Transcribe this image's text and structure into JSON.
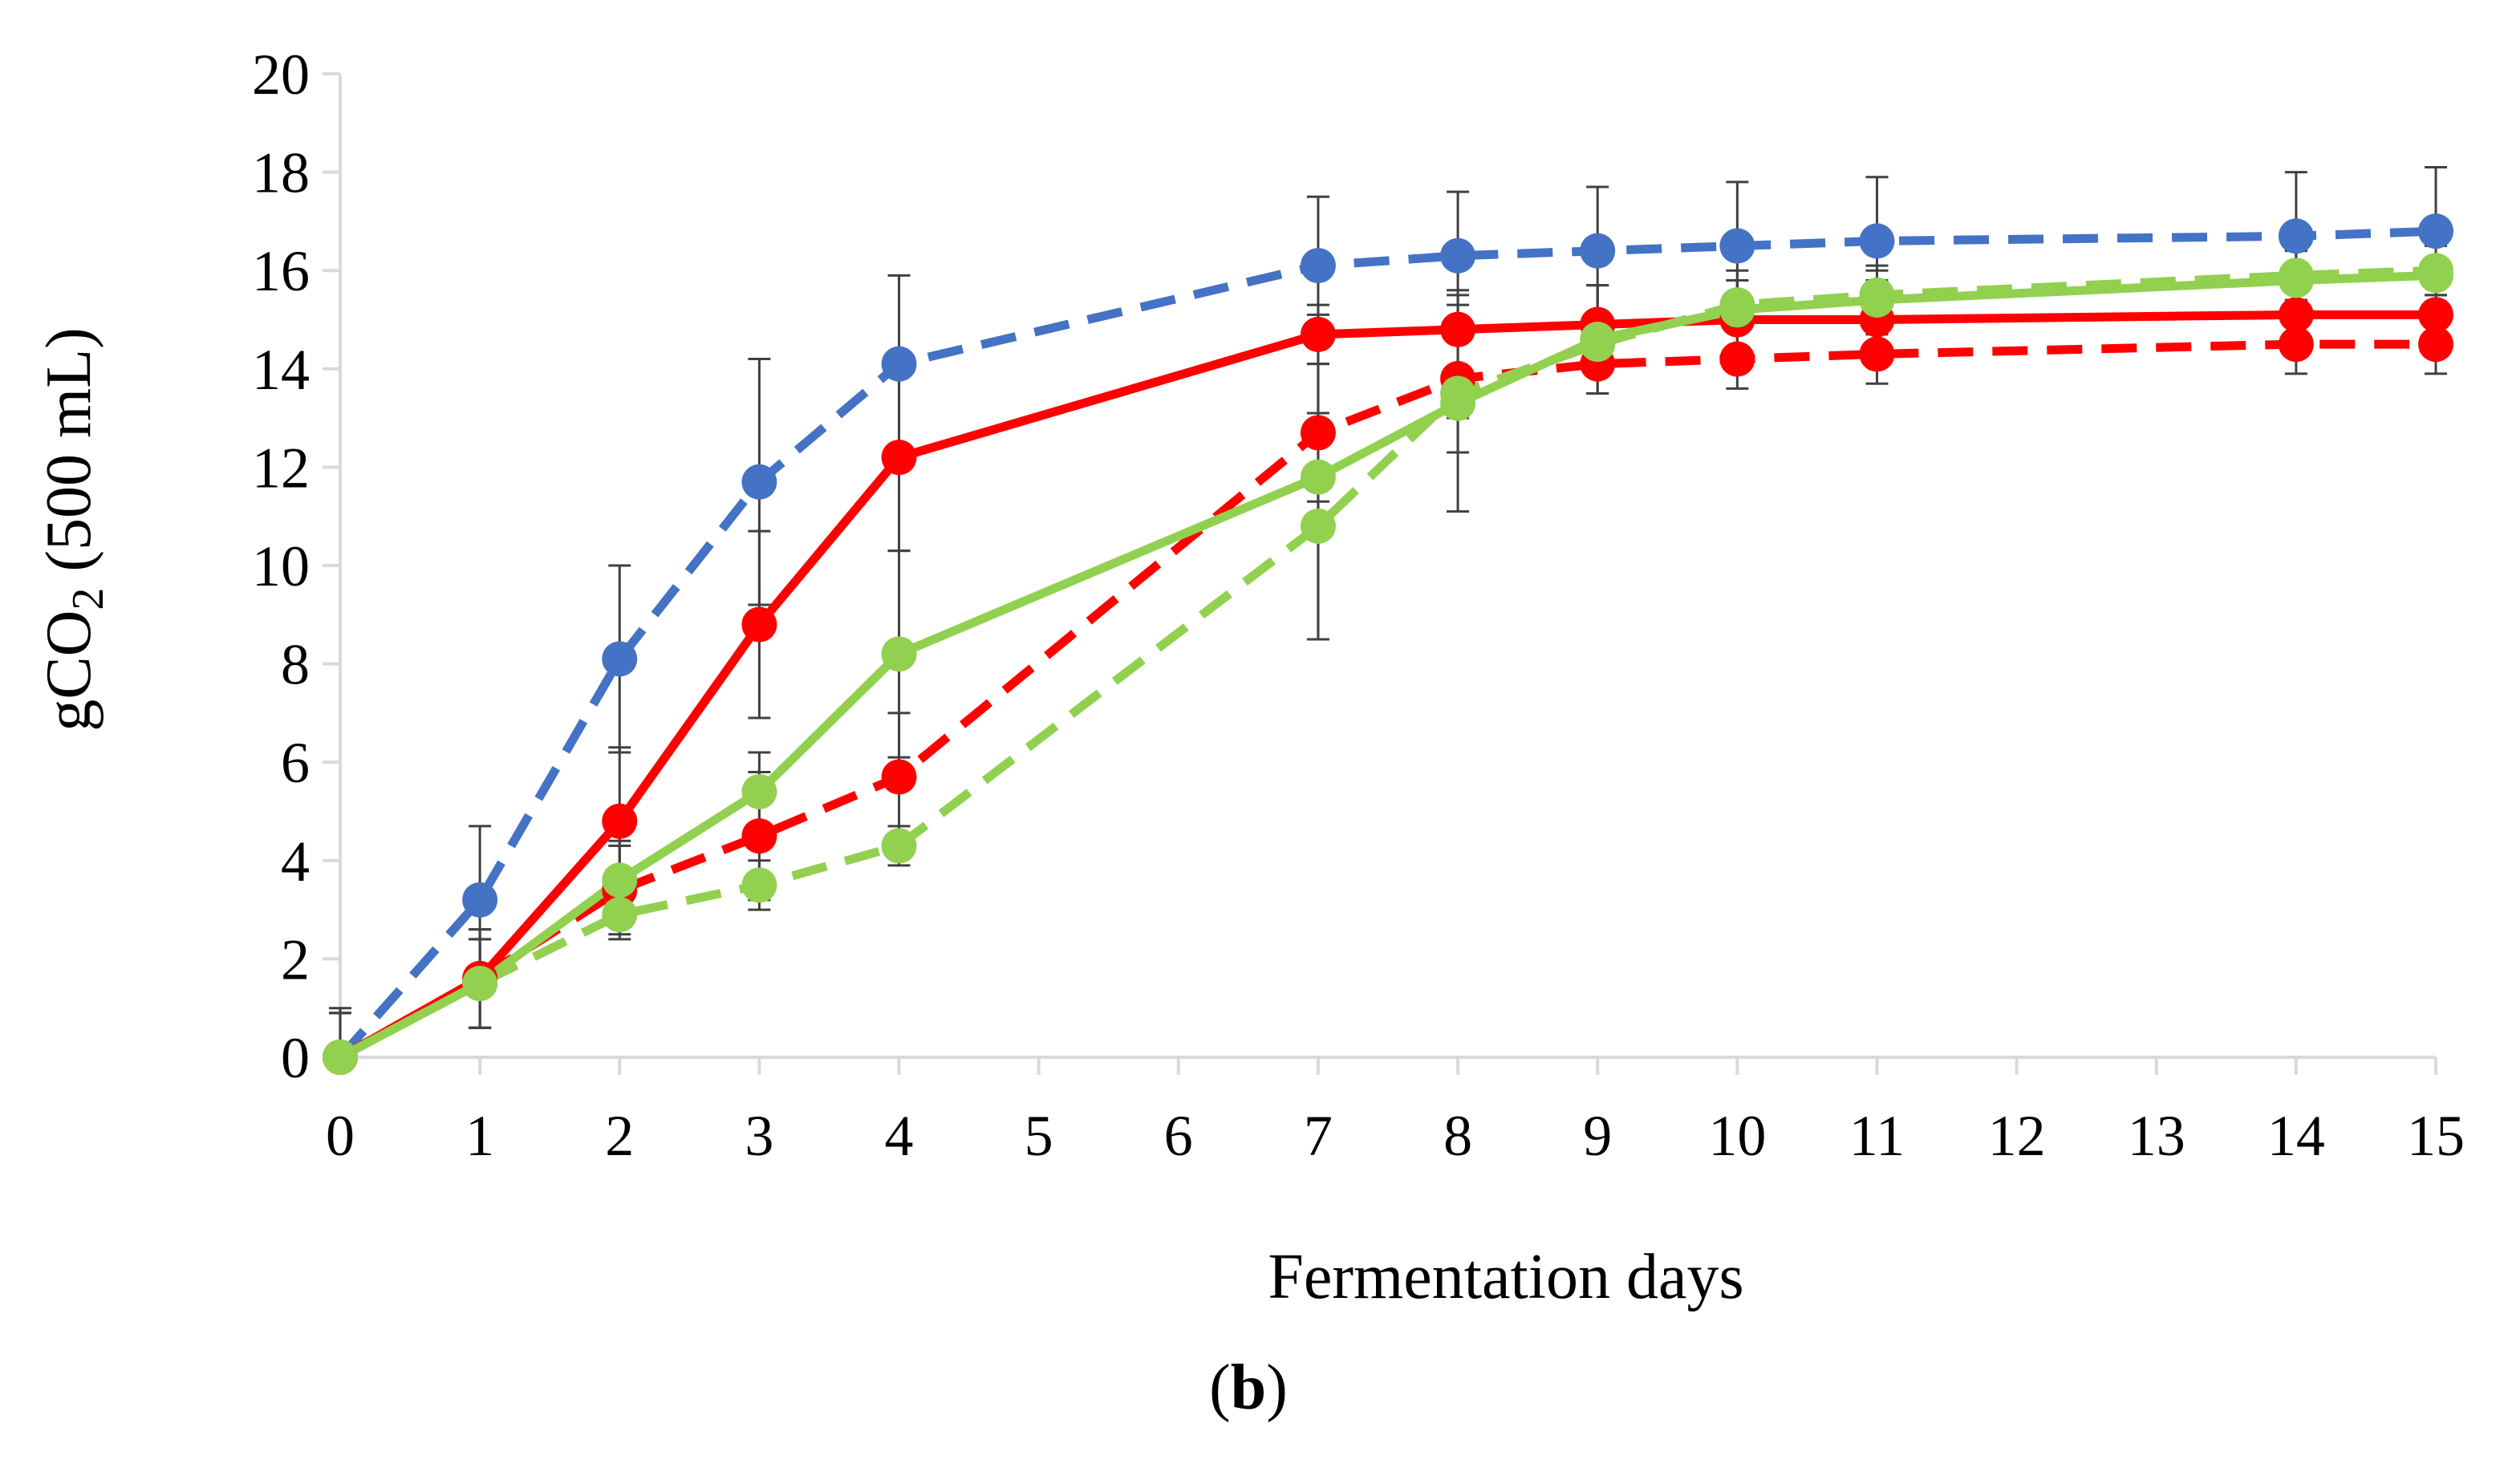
{
  "chart_data": {
    "type": "line",
    "xlabel": "Fermentation days",
    "ylabel_main": "gCO",
    "ylabel_sub": "2",
    "ylabel_rest": " (500 mL)",
    "panel_label": {
      "open": "(",
      "letter": "b",
      "close": ")"
    },
    "x": [
      0,
      1,
      2,
      3,
      4,
      7,
      8,
      9,
      10,
      11,
      14,
      15
    ],
    "xticks": [
      0,
      1,
      2,
      3,
      4,
      5,
      6,
      7,
      8,
      9,
      10,
      11,
      12,
      13,
      14,
      15
    ],
    "xlim": [
      0,
      15
    ],
    "ylim": [
      0,
      20
    ],
    "yticks": [
      0,
      2,
      4,
      6,
      8,
      10,
      12,
      14,
      16,
      18,
      20
    ],
    "grid": false,
    "series": [
      {
        "color": "#4472C4",
        "dash": true,
        "values": [
          0,
          3.2,
          8.1,
          11.7,
          14.1,
          16.1,
          16.3,
          16.4,
          16.5,
          16.6,
          16.7,
          16.8
        ],
        "errors": [
          1.0,
          1.5,
          1.9,
          2.5,
          1.8,
          1.4,
          1.3,
          1.3,
          1.3,
          1.3,
          1.3,
          1.3
        ]
      },
      {
        "color": "#FF0000",
        "dash": false,
        "values": [
          0,
          1.6,
          4.8,
          8.8,
          12.2,
          14.7,
          14.8,
          14.9,
          15.0,
          15.0,
          15.1,
          15.1
        ],
        "errors": [
          0.9,
          1.0,
          1.5,
          1.9,
          1.9,
          0.6,
          0.8,
          0.8,
          0.8,
          0.8,
          0.8,
          0.8
        ]
      },
      {
        "color": "#FF0000",
        "dash": true,
        "values": [
          0,
          1.6,
          3.4,
          4.5,
          5.7,
          12.7,
          13.8,
          14.1,
          14.2,
          14.3,
          14.5,
          14.5
        ],
        "errors": [
          0.9,
          1.0,
          0.9,
          1.3,
          1.3,
          1.4,
          1.5,
          0.6,
          0.6,
          0.6,
          0.6,
          0.6
        ]
      },
      {
        "color": "#92D050",
        "dash": false,
        "values": [
          0,
          1.5,
          3.6,
          5.4,
          8.2,
          11.8,
          13.3,
          14.6,
          15.2,
          15.4,
          15.8,
          15.9
        ],
        "errors": [
          0.9,
          0.9,
          0.8,
          0.8,
          2.1,
          3.3,
          2.2,
          1.1,
          0.8,
          0.7,
          0.6,
          0.6
        ]
      },
      {
        "color": "#92D050",
        "dash": true,
        "values": [
          0,
          1.5,
          2.9,
          3.5,
          4.3,
          10.8,
          13.5,
          14.5,
          15.3,
          15.5,
          15.9,
          16.0
        ],
        "errors": [
          0.9,
          0.9,
          0.5,
          0.5,
          0.4,
          2.3,
          0.5,
          0.5,
          0.5,
          0.5,
          0.5,
          0.5
        ]
      }
    ]
  }
}
